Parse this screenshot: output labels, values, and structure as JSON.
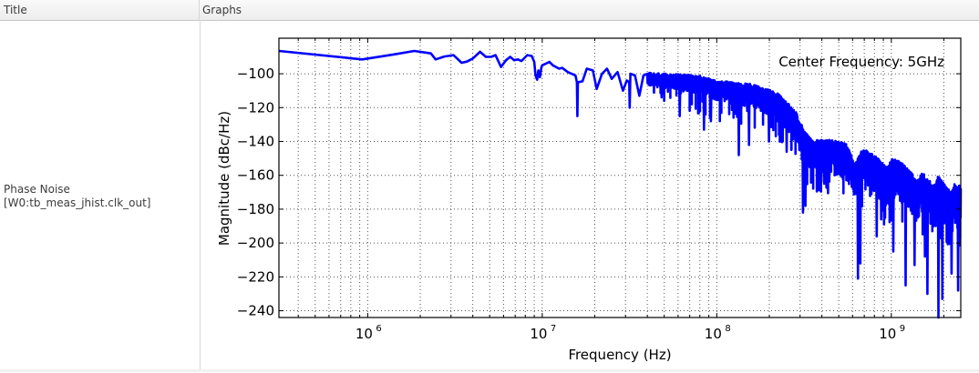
{
  "table": {
    "columns": [
      {
        "label": "Title"
      },
      {
        "label": "Graphs"
      }
    ],
    "rows": [
      {
        "title_line1": "Phase Noise",
        "title_line2": "[W0:tb_meas_jhist.clk_out]"
      }
    ]
  },
  "colors": {
    "trace": "#0000ff",
    "axes": "#000000",
    "grid": "#555555",
    "header_text": "#3a3a3a"
  },
  "chart_data": {
    "type": "line",
    "title": "",
    "annotation": "Center Frequency: 5GHz",
    "xlabel": "Frequency (Hz)",
    "ylabel": "Magnitude (dBc/Hz)",
    "xscale": "log",
    "xlim": [
      310000.0,
      2500000000.0
    ],
    "ylim": [
      -244,
      -79
    ],
    "xticks": [
      {
        "value": 1000000.0,
        "base": "10",
        "exp": "6"
      },
      {
        "value": 10000000.0,
        "base": "10",
        "exp": "7"
      },
      {
        "value": 100000000.0,
        "base": "10",
        "exp": "8"
      },
      {
        "value": 1000000000.0,
        "base": "10",
        "exp": "9"
      }
    ],
    "yticks": [
      -100,
      -120,
      -140,
      -160,
      -180,
      -200,
      -220,
      -240
    ],
    "grid": true,
    "grid_style": "dotted",
    "legend": null,
    "series": [
      {
        "name": "Phase Noise",
        "coarse_points_hz_dbc": [
          [
            310000.0,
            -86.5
          ],
          [
            930000.0,
            -91.5
          ],
          [
            1430000.0,
            -88.5
          ],
          [
            1850000.0,
            -86.5
          ],
          [
            2300000.0,
            -88
          ],
          [
            2450000.0,
            -91.5
          ],
          [
            2750000.0,
            -89.8
          ],
          [
            3100000.0,
            -89
          ],
          [
            3450000.0,
            -93.5
          ],
          [
            3700000.0,
            -92.8
          ],
          [
            4000000.0,
            -91
          ],
          [
            4400000.0,
            -87
          ],
          [
            4750000.0,
            -90
          ],
          [
            5100000.0,
            -90
          ],
          [
            5400000.0,
            -89
          ],
          [
            5800000.0,
            -96
          ],
          [
            6200000.0,
            -92
          ],
          [
            6550000.0,
            -90
          ],
          [
            6900000.0,
            -92
          ],
          [
            7250000.0,
            -91.5
          ],
          [
            7600000.0,
            -92.5
          ],
          [
            8200000.0,
            -89
          ],
          [
            8700000.0,
            -89.5
          ],
          [
            9000000.0,
            -93
          ],
          [
            9150000.0,
            -101
          ],
          [
            9350000.0,
            -103.5
          ],
          [
            9500000.0,
            -98
          ],
          [
            9700000.0,
            -102
          ],
          [
            9900000.0,
            -96
          ],
          [
            10000000.0,
            -95
          ],
          [
            10500000.0,
            -94
          ],
          [
            11000000.0,
            -93
          ],
          [
            11500000.0,
            -95
          ],
          [
            12500000.0,
            -97
          ],
          [
            13000000.0,
            -96.5
          ],
          [
            14000000.0,
            -99
          ],
          [
            15500000.0,
            -101
          ],
          [
            16000000.0,
            -105
          ],
          [
            17000000.0,
            -104.5
          ],
          [
            18000000.0,
            -97
          ],
          [
            19500000.0,
            -98
          ],
          [
            20500000.0,
            -109
          ],
          [
            22000000.0,
            -100
          ],
          [
            23500000.0,
            -97
          ],
          [
            25000000.0,
            -103
          ],
          [
            27000000.0,
            -99
          ],
          [
            29000000.0,
            -110
          ],
          [
            30500000.0,
            -104
          ],
          [
            32000000.0,
            -100
          ],
          [
            34000000.0,
            -101
          ],
          [
            36000000.0,
            -113
          ],
          [
            38000000.0,
            -101
          ],
          [
            40000000.0,
            -100
          ]
        ],
        "dense_band": {
          "start_hz": 40000000.0,
          "end_hz": 2500000000.0,
          "samples": 1400,
          "envelope_top_db": [
            [
              40000000.0,
              -99
            ],
            [
              80000000.0,
              -101
            ],
            [
              100000000.0,
              -104
            ],
            [
              160000000.0,
              -106
            ],
            [
              220000000.0,
              -111
            ],
            [
              280000000.0,
              -121
            ],
            [
              315000000.0,
              -133
            ],
            [
              350000000.0,
              -139
            ],
            [
              450000000.0,
              -139
            ],
            [
              550000000.0,
              -141
            ],
            [
              620000000.0,
              -153
            ],
            [
              680000000.0,
              -144
            ],
            [
              800000000.0,
              -148
            ],
            [
              940000000.0,
              -155
            ],
            [
              1020000000.0,
              -150
            ],
            [
              1200000000.0,
              -153
            ],
            [
              1400000000.0,
              -163
            ],
            [
              1500000000.0,
              -158
            ],
            [
              1750000000.0,
              -166
            ],
            [
              1850000000.0,
              -160
            ],
            [
              2200000000.0,
              -170
            ],
            [
              2300000000.0,
              -165
            ],
            [
              2500000000.0,
              -166
            ]
          ],
          "band_thickness_db": [
            [
              40000000.0,
              8
            ],
            [
              100000000.0,
              12
            ],
            [
              200000000.0,
              15
            ],
            [
              300000000.0,
              18
            ],
            [
              600000000.0,
              22
            ],
            [
              1000000000.0,
              24
            ],
            [
              2500000000.0,
              26
            ]
          ],
          "deep_dips_hz_db": [
            [
              15800000.0,
              -125
            ],
            [
              31500000.0,
              -120
            ],
            [
              48000000.0,
              -114
            ],
            [
              61000000.0,
              -125
            ],
            [
              84000000.0,
              -133
            ],
            [
              92000000.0,
              -128
            ],
            [
              133000000.0,
              -148
            ],
            [
              152000000.0,
              -142
            ],
            [
              198000000.0,
              -140
            ],
            [
              250000000.0,
              -146
            ],
            [
              310000000.0,
              -182
            ],
            [
              320000000.0,
              -178
            ],
            [
              410000000.0,
              -165
            ],
            [
              440000000.0,
              -160
            ],
            [
              640000000.0,
              -221
            ],
            [
              660000000.0,
              -212
            ],
            [
              820000000.0,
              -196
            ],
            [
              870000000.0,
              -186
            ],
            [
              1020000000.0,
              -205
            ],
            [
              1200000000.0,
              -225
            ],
            [
              1350000000.0,
              -213
            ],
            [
              1550000000.0,
              -208
            ],
            [
              1600000000.0,
              -230
            ],
            [
              1850000000.0,
              -244
            ],
            [
              1950000000.0,
              -233
            ],
            [
              2200000000.0,
              -218
            ],
            [
              2400000000.0,
              -228
            ],
            [
              2450000000.0,
              -190
            ]
          ]
        }
      }
    ]
  }
}
